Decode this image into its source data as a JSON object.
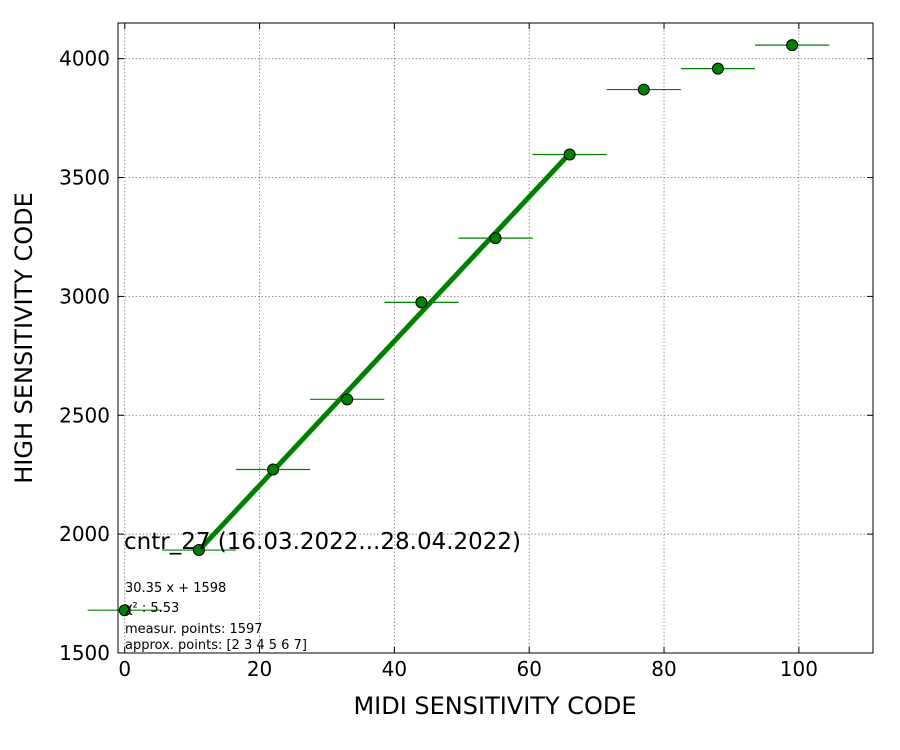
{
  "chart_data": {
    "type": "scatter",
    "xlabel": "MIDI SENSITIVITY CODE",
    "ylabel": "HIGH SENSITIVITY CODE",
    "xlim": [
      -1,
      111
    ],
    "ylim": [
      1500,
      4150
    ],
    "xticks": [
      0,
      20,
      40,
      60,
      80,
      100
    ],
    "yticks": [
      1500,
      2000,
      2500,
      3000,
      3500,
      4000
    ],
    "grid": true,
    "colors": {
      "marker": "#008000",
      "fit_line": "#008000",
      "grid": "#888888"
    },
    "points": [
      {
        "x": 0,
        "y": 1680,
        "xerr": 5.5
      },
      {
        "x": 11,
        "y": 1933,
        "xerr": 5.5
      },
      {
        "x": 22,
        "y": 2272,
        "xerr": 5.5
      },
      {
        "x": 33,
        "y": 2567,
        "xerr": 5.5
      },
      {
        "x": 44,
        "y": 2975,
        "xerr": 5.5
      },
      {
        "x": 55,
        "y": 3245,
        "xerr": 5.5
      },
      {
        "x": 66,
        "y": 3597,
        "xerr": 5.5
      },
      {
        "x": 77,
        "y": 3870,
        "xerr": 5.5
      },
      {
        "x": 88,
        "y": 3958,
        "xerr": 5.5
      },
      {
        "x": 99,
        "y": 4057,
        "xerr": 5.5
      }
    ],
    "fit": {
      "slope": 30.35,
      "intercept": 1598,
      "x_from": 11,
      "x_to": 66
    },
    "annotation": {
      "title": "cntr_27 (16.03.2022...28.04.2022)",
      "lines": [
        "30.35 x + 1598",
        "χ² : 5.53",
        "measur. points: 1597",
        "approx. points: [2 3 4 5 6 7]"
      ]
    }
  }
}
